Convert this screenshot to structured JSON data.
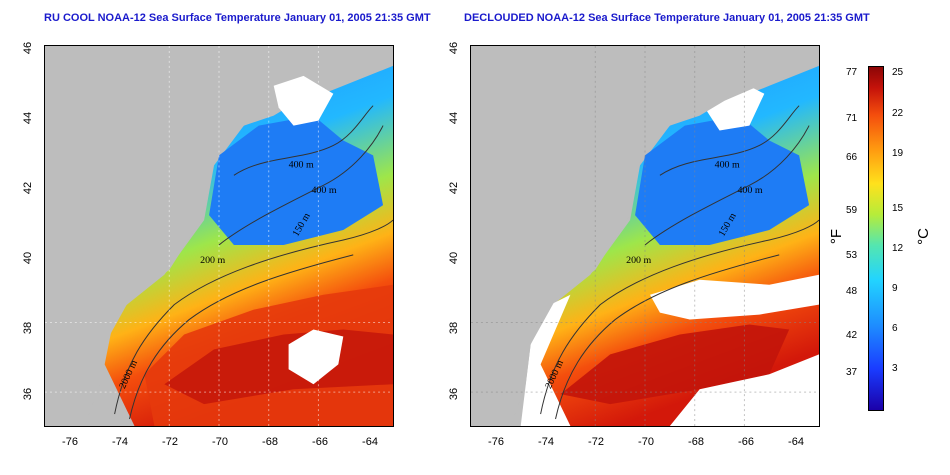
{
  "panels": [
    {
      "title": "RU COOL NOAA-12 Sea Surface Temperature January 01, 2005 21:35 GMT"
    },
    {
      "title": "DECLOUDED NOAA-12 Sea Surface Temperature January 01, 2005 21:35 GMT"
    }
  ],
  "axes": {
    "x_ticks": [
      "-76",
      "-74",
      "-72",
      "-70",
      "-68",
      "-66",
      "-64"
    ],
    "y_ticks": [
      "46",
      "44",
      "42",
      "40",
      "38",
      "36"
    ],
    "lon_range": [
      -77,
      -63
    ],
    "lat_range": [
      35,
      46
    ]
  },
  "contours": {
    "labels": [
      "400 m",
      "400 m",
      "150 m",
      "200 m",
      "2000 m"
    ]
  },
  "colorbar": {
    "fahrenheit_ticks": [
      "77",
      "71",
      "66",
      "59",
      "53",
      "48",
      "42",
      "37"
    ],
    "celsius_ticks": [
      "25",
      "22",
      "19",
      "15",
      "12",
      "9",
      "6",
      "3"
    ],
    "unit_f": "°F",
    "unit_c": "°C",
    "colors": [
      "#1b00a8",
      "#1a3cff",
      "#1e8fff",
      "#22d4ff",
      "#54e6b0",
      "#b6ec3a",
      "#ffe11c",
      "#ff9a10",
      "#f44e0d",
      "#c4120a",
      "#8c0606"
    ]
  },
  "map_colors": {
    "land": "#bdbdbd",
    "cloud": "#ffffff"
  }
}
